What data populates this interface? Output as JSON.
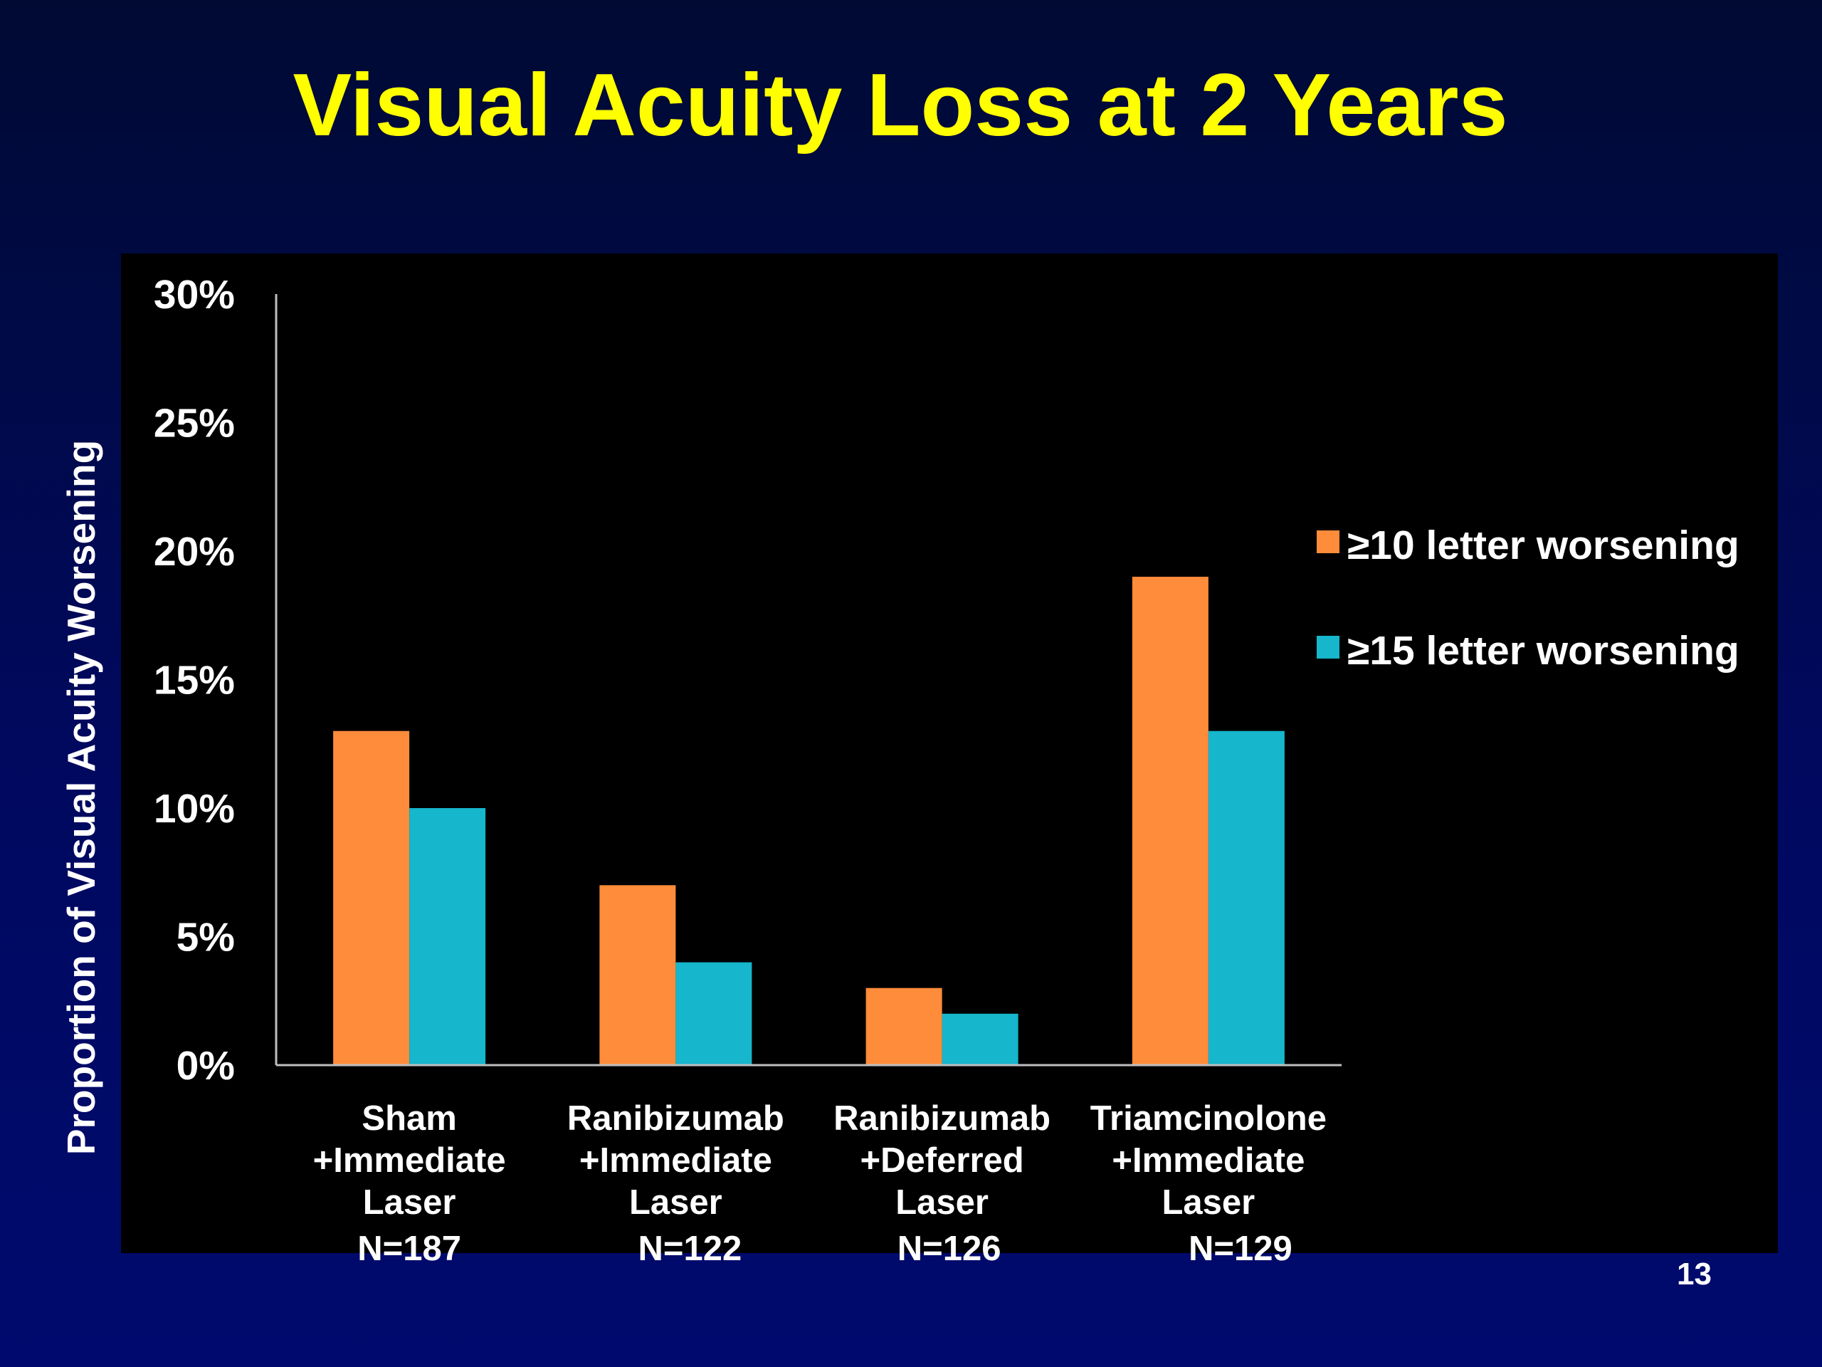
{
  "slide": {
    "title": "Visual Acuity Loss at 2 Years",
    "page_number": "13"
  },
  "colors": {
    "background": "#000a6e",
    "plot_background": "#000000",
    "title": "#ffff00",
    "axis": "#bfbfbf"
  },
  "chart_data": {
    "type": "bar",
    "title": "Visual Acuity Loss at 2 Years",
    "ylabel": "Proportion of Visual Acuity Worsening",
    "xlabel": "",
    "ylim": [
      0,
      30
    ],
    "yticks": [
      "0%",
      "5%",
      "10%",
      "15%",
      "20%",
      "25%",
      "30%"
    ],
    "grid": false,
    "legend_position": "right",
    "categories": [
      {
        "lines": [
          "Sham",
          "+Immediate",
          "Laser"
        ],
        "n": "N=187"
      },
      {
        "lines": [
          "Ranibizumab",
          "+Immediate",
          "Laser"
        ],
        "n": "N=122"
      },
      {
        "lines": [
          "Ranibizumab",
          "+Deferred",
          "Laser"
        ],
        "n": "N=126"
      },
      {
        "lines": [
          "Triamcinolone",
          "+Immediate",
          "Laser"
        ],
        "n": "N=129"
      }
    ],
    "series": [
      {
        "name": "≥10 letter worsening",
        "color": "#ff8c3a",
        "values": [
          13,
          7,
          3,
          19
        ]
      },
      {
        "name": "≥15 letter worsening",
        "color": "#16b6cc",
        "values": [
          10,
          4,
          2,
          13
        ]
      }
    ]
  }
}
